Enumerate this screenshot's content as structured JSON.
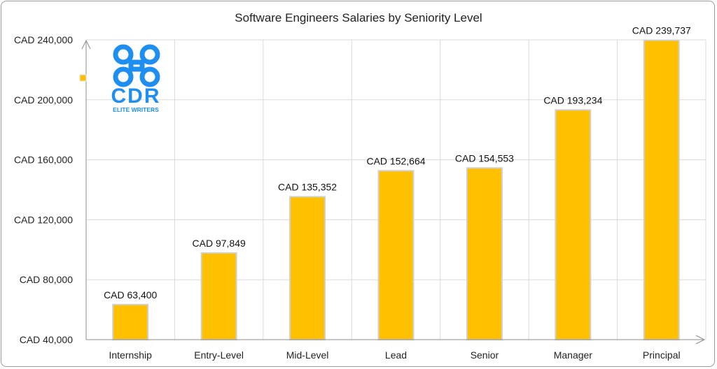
{
  "chart_data": {
    "type": "bar",
    "title": "Software Engineers Salaries by Seniority Level",
    "xlabel": "",
    "ylabel": "",
    "categories": [
      "Internship",
      "Entry-Level",
      "Mid-Level",
      "Lead",
      "Senior",
      "Manager",
      "Principal"
    ],
    "values": [
      63400,
      97849,
      135352,
      152664,
      154553,
      193234,
      239737
    ],
    "data_labels": [
      "CAD 63,400",
      "CAD 97,849",
      "CAD 135,352",
      "CAD 152,664",
      "CAD 154,553",
      "CAD 193,234",
      "CAD 239,737"
    ],
    "yticks": [
      40000,
      80000,
      120000,
      160000,
      200000,
      240000
    ],
    "ytick_labels": [
      "CAD 40,000",
      "CAD 80,000",
      "CAD 120,000",
      "CAD 160,000",
      "CAD 200,000",
      "CAD 240,000"
    ],
    "ylim": [
      40000,
      240000
    ],
    "grid": true,
    "legend": "none"
  },
  "logo": {
    "text": "CDR",
    "subtitle": "ELITE WRITERS"
  },
  "colors": {
    "bar": "#FFC000",
    "bar_edge": "#D0D0D0",
    "grid": "#D9D9D9",
    "axis": "#8C8C8C",
    "logo": "#1E8EF0"
  }
}
